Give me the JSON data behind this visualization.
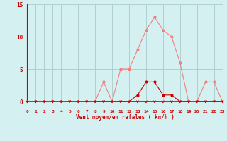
{
  "x": [
    0,
    1,
    2,
    3,
    4,
    5,
    6,
    7,
    8,
    9,
    10,
    11,
    12,
    13,
    14,
    15,
    16,
    17,
    18,
    19,
    20,
    21,
    22,
    23
  ],
  "y_rafales": [
    0,
    0,
    0,
    0,
    0,
    0,
    0,
    0,
    0,
    3,
    0,
    5,
    5,
    8,
    11,
    13,
    11,
    10,
    6,
    0,
    0,
    3,
    3,
    0
  ],
  "y_moyen": [
    0,
    0,
    0,
    0,
    0,
    0,
    0,
    0,
    0,
    0,
    0,
    0,
    0,
    1,
    3,
    3,
    1,
    1,
    0,
    0,
    0,
    0,
    0,
    0
  ],
  "line_color_rafales": "#f08080",
  "line_color_moyen": "#cc0000",
  "bg_color": "#d4f0f0",
  "grid_color": "#aacccc",
  "axis_color": "#cc0000",
  "label_color": "#cc0000",
  "xlabel": "Vent moyen/en rafales ( kn/h )",
  "ylim": [
    0,
    15
  ],
  "yticks": [
    0,
    5,
    10,
    15
  ],
  "xlim": [
    0,
    23
  ]
}
